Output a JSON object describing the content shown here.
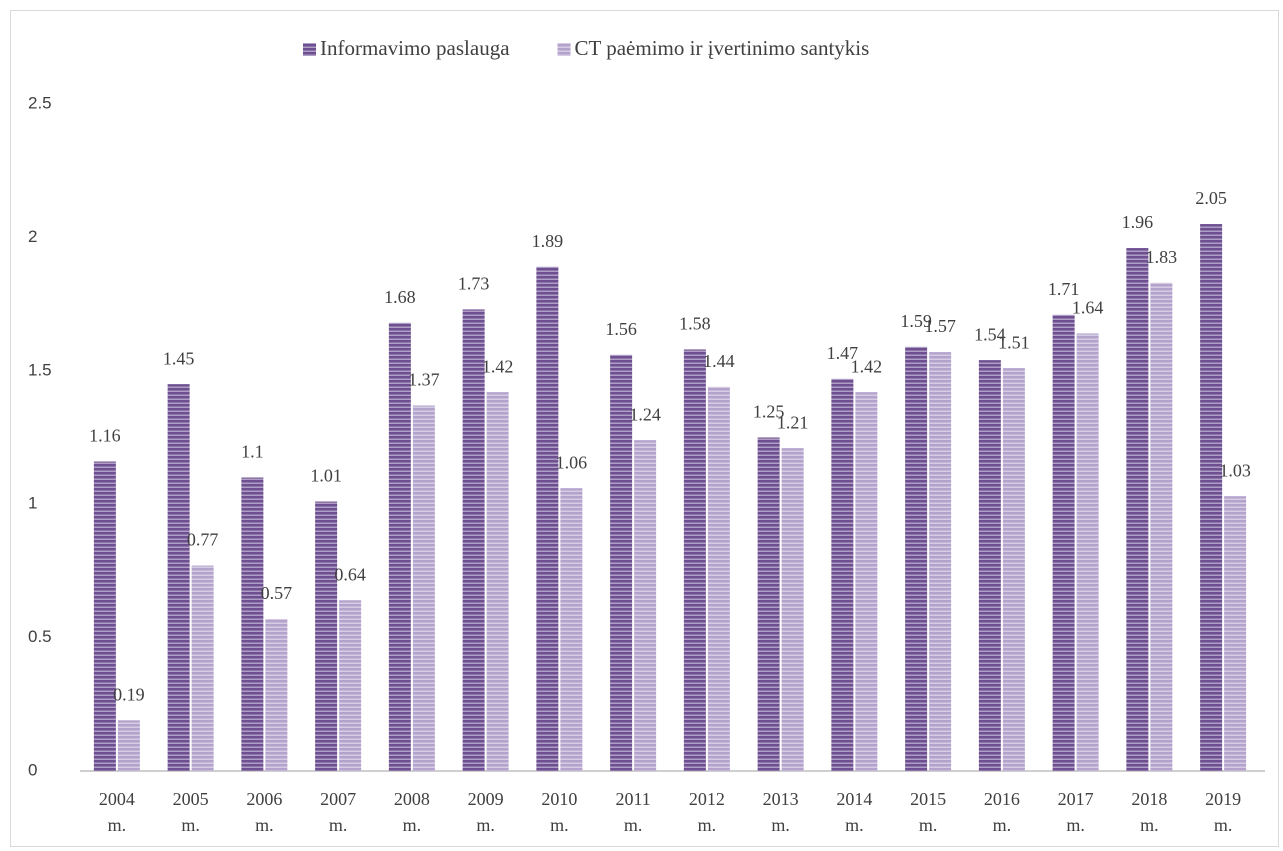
{
  "chart_data": {
    "type": "bar",
    "categories": [
      "2004 m.",
      "2005 m.",
      "2006 m.",
      "2007 m.",
      "2008 m.",
      "2009 m.",
      "2010 m.",
      "2011 m.",
      "2012 m.",
      "2013 m.",
      "2014 m.",
      "2015 m.",
      "2016 m.",
      "2017 m.",
      "2018 m.",
      "2019 m."
    ],
    "series": [
      {
        "name": "Informavimo paslauga",
        "color": "#6e4f91",
        "values": [
          1.16,
          1.45,
          1.1,
          1.01,
          1.68,
          1.73,
          1.89,
          1.56,
          1.58,
          1.25,
          1.47,
          1.59,
          1.54,
          1.71,
          1.96,
          2.05
        ]
      },
      {
        "name": "CT paėmimo ir įvertinimo santykis",
        "color": "#b3a2cc",
        "values": [
          0.19,
          0.77,
          0.57,
          0.64,
          1.37,
          1.42,
          1.06,
          1.24,
          1.44,
          1.21,
          1.42,
          1.57,
          1.51,
          1.64,
          1.83,
          1.03
        ]
      }
    ],
    "ylim": [
      0,
      2.5
    ],
    "yticks": [
      0,
      0.5,
      1,
      1.5,
      2,
      2.5
    ],
    "grid": false,
    "legend": "top"
  }
}
